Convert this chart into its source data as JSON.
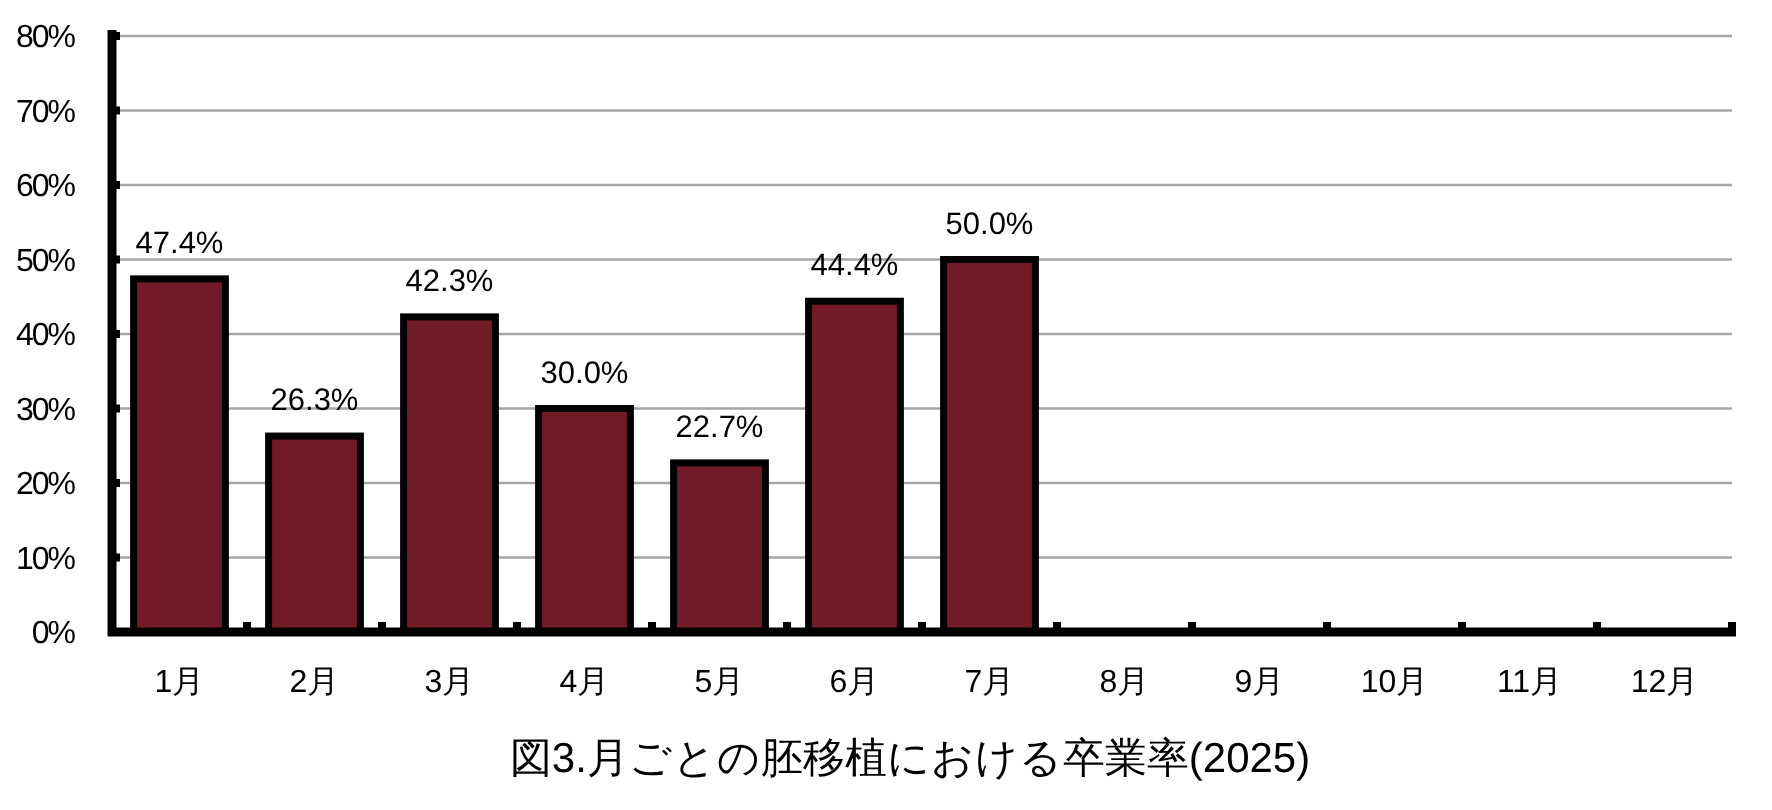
{
  "chart_data": {
    "type": "bar",
    "title": "図3.月ごとの胚移植における卒業率(2025)",
    "categories": [
      "1月",
      "2月",
      "3月",
      "4月",
      "5月",
      "6月",
      "7月",
      "8月",
      "9月",
      "10月",
      "11月",
      "12月"
    ],
    "values": [
      47.4,
      26.3,
      42.3,
      30.0,
      22.7,
      44.4,
      50.0,
      null,
      null,
      null,
      null,
      null
    ],
    "value_labels": [
      "47.4%",
      "26.3%",
      "42.3%",
      "30.0%",
      "22.7%",
      "44.4%",
      "50.0%",
      null,
      null,
      null,
      null,
      null
    ],
    "color": "#731a28",
    "ylim": [
      0,
      80
    ],
    "yticks": [
      {
        "value": 0,
        "label": "0%"
      },
      {
        "value": 10,
        "label": "10%"
      },
      {
        "value": 20,
        "label": "20%"
      },
      {
        "value": 30,
        "label": "30%"
      },
      {
        "value": 40,
        "label": "40%"
      },
      {
        "value": 50,
        "label": "50%"
      },
      {
        "value": 60,
        "label": "60%"
      },
      {
        "value": 70,
        "label": "70%"
      },
      {
        "value": 80,
        "label": "80%"
      }
    ],
    "grid": "y"
  }
}
